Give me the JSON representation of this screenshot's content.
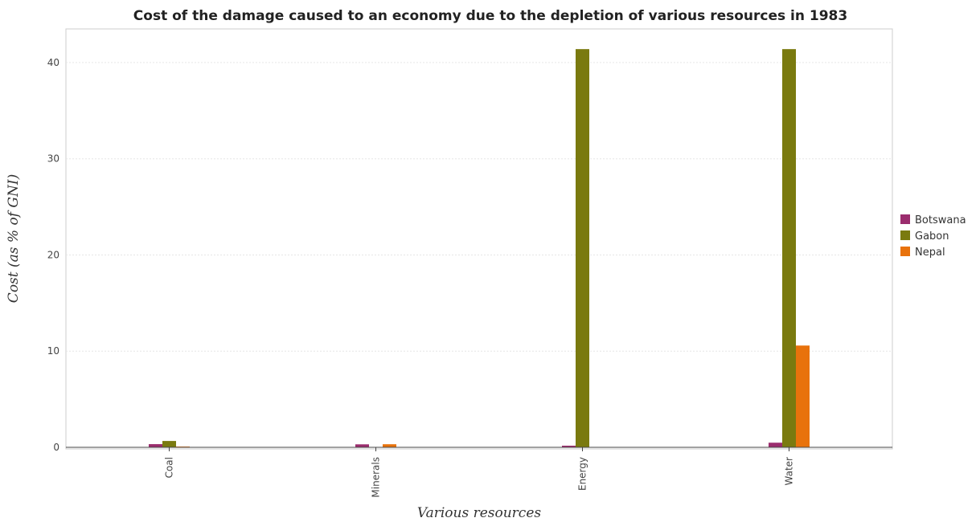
{
  "chart_data": {
    "type": "bar",
    "title": "Cost of the damage caused to an economy due to the depletion of various resources in 1983",
    "xlabel": "Various resources",
    "ylabel": "Cost (as % of GNI)",
    "categories": [
      "Coal",
      "Minerals",
      "Energy",
      "Water"
    ],
    "series": [
      {
        "name": "Botswana",
        "color": "#9b2d6e",
        "values": [
          0.33,
          0.31,
          0.17,
          0.48
        ]
      },
      {
        "name": "Gabon",
        "color": "#7a7a0f",
        "values": [
          0.66,
          0.01,
          41.4,
          41.4
        ]
      },
      {
        "name": "Nepal",
        "color": "#e8720c",
        "values": [
          0.08,
          0.32,
          0.01,
          10.58
        ]
      }
    ],
    "ylim": [
      0,
      43.5
    ],
    "yticks": [
      0,
      10,
      20,
      30,
      40
    ],
    "grid": true,
    "legend": "right"
  }
}
